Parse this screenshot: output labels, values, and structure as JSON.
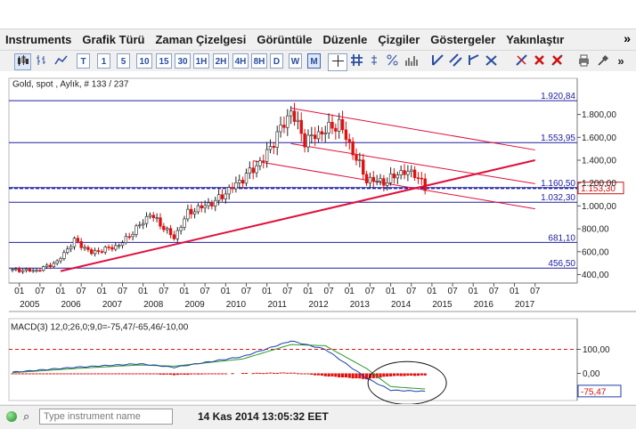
{
  "menu": [
    "Instruments",
    "Grafik Türü",
    "Zaman Çizelgesi",
    "Görüntüle",
    "Düzenle",
    "Çizgiler",
    "Göstergeler",
    "Yakınlaştır"
  ],
  "menu_more": "»",
  "toolbar": {
    "periods": [
      "T",
      "1",
      "5",
      "10",
      "15",
      "30",
      "1H",
      "2H",
      "4H",
      "8H",
      "D",
      "W",
      "M"
    ],
    "selected_period": "M",
    "tools": [
      "candlestick-icon",
      "bar-chart-icon",
      "line-chart-icon",
      "crosshair-icon",
      "grid-icon",
      "fibonacci-icon",
      "percent-icon",
      "volume-icon",
      "trendline-icons",
      "delete-icon",
      "print-icon",
      "more-icon"
    ]
  },
  "chart": {
    "instrument_label": "Gold, spot , Aylık, # 133 / 237",
    "current_price": "1.153,30",
    "macd_label": "MACD(3) 12,0;26,0;9,0=-75,47/-65,46/-10,00",
    "macd_current": "-75,47",
    "colors": {
      "up": "#ffffff",
      "down": "#e01010",
      "trend": "#e0103c",
      "level": "#2020a0",
      "macd_line": "#1e3ea8",
      "signal_line": "#2a9a2a",
      "hist": "#e01010"
    }
  },
  "chart_data": {
    "type": "candlestick",
    "price_axis": {
      "ticks": [
        "1.800,00",
        "1.600,00",
        "1.400,00",
        "1.200,00",
        "1.000,00",
        "800,00",
        "600,00",
        "400,00"
      ],
      "tick_values": [
        1800,
        1600,
        1400,
        1200,
        1000,
        800,
        600,
        400
      ],
      "ylim": [
        330,
        1950
      ]
    },
    "time_axis": {
      "month_ticks": [
        "01",
        "07",
        "01",
        "07",
        "01",
        "07",
        "01",
        "07",
        "01",
        "07",
        "01",
        "07",
        "01",
        "07",
        "01",
        "07",
        "01",
        "07",
        "01",
        "07",
        "01",
        "07",
        "01",
        "07",
        "01",
        "07"
      ],
      "years": [
        "2005",
        "2006",
        "2007",
        "2008",
        "2009",
        "2010",
        "2011",
        "2012",
        "2013",
        "2014",
        "2015",
        "2016",
        "2017"
      ]
    },
    "horizontal_levels": [
      {
        "value": 1920.84,
        "label": "1.920,84"
      },
      {
        "value": 1553.95,
        "label": "1.553,95"
      },
      {
        "value": 1160.5,
        "label": "1.160,50"
      },
      {
        "value": 1032.3,
        "label": "1.032,30"
      },
      {
        "value": 681.1,
        "label": "681,10"
      },
      {
        "value": 456.5,
        "label": "456,50"
      }
    ],
    "current_level": {
      "value": 1153.3,
      "label": "1.153,30"
    },
    "anchors": [
      [
        "2004-11",
        440
      ],
      [
        "2005-06",
        435
      ],
      [
        "2005-12",
        510
      ],
      [
        "2006-05",
        700
      ],
      [
        "2006-10",
        590
      ],
      [
        "2007-06",
        655
      ],
      [
        "2007-12",
        830
      ],
      [
        "2008-03",
        930
      ],
      [
        "2008-10",
        720
      ],
      [
        "2009-02",
        940
      ],
      [
        "2009-10",
        1040
      ],
      [
        "2010-06",
        1240
      ],
      [
        "2010-12",
        1410
      ],
      [
        "2011-08",
        1830
      ],
      [
        "2011-12",
        1570
      ],
      [
        "2012-10",
        1720
      ],
      [
        "2013-06",
        1230
      ],
      [
        "2013-12",
        1210
      ],
      [
        "2014-03",
        1290
      ],
      [
        "2014-08",
        1290
      ],
      [
        "2014-11",
        1153
      ]
    ],
    "macd": {
      "axis_ticks": [
        "100,00",
        "0,00"
      ],
      "tick_values": [
        100,
        0
      ],
      "ylim": [
        -135,
        160
      ],
      "macd_anchors": [
        [
          "2004-11",
          5
        ],
        [
          "2006-05",
          25
        ],
        [
          "2007-12",
          40
        ],
        [
          "2008-10",
          25
        ],
        [
          "2010-06",
          70
        ],
        [
          "2011-08",
          135
        ],
        [
          "2012-06",
          100
        ],
        [
          "2013-06",
          -20
        ],
        [
          "2014-01",
          -70
        ],
        [
          "2014-11",
          -75
        ]
      ],
      "signal_anchors": [
        [
          "2004-11",
          3
        ],
        [
          "2006-05",
          20
        ],
        [
          "2007-12",
          35
        ],
        [
          "2008-10",
          30
        ],
        [
          "2010-06",
          60
        ],
        [
          "2011-08",
          120
        ],
        [
          "2012-06",
          115
        ],
        [
          "2013-06",
          20
        ],
        [
          "2014-01",
          -55
        ],
        [
          "2014-11",
          -65
        ]
      ]
    }
  },
  "statusbar": {
    "search_placeholder": "Type instrument name",
    "timestamp": "14 Kas 2014 13:05:32 EET"
  }
}
